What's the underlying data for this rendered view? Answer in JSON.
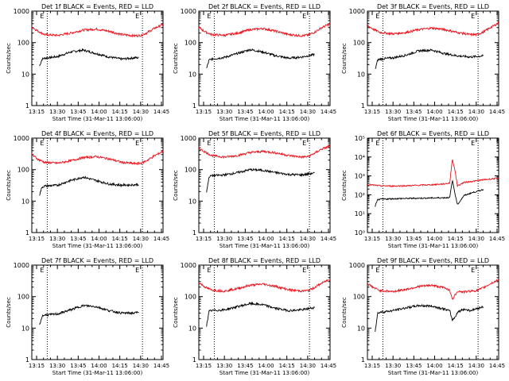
{
  "page": {
    "colors": {
      "background": "#ffffff",
      "axis": "#000000",
      "events": "#000000",
      "lld": "#e8141e",
      "marker_line": "#000000"
    },
    "xlabel": "Start Time (31-Mar-11 13:06:00)",
    "ylabel": "Counts/sec",
    "xtick_labels": [
      "13:15",
      "13:30",
      "13:45",
      "14:00",
      "14:15",
      "14:30",
      "14:45"
    ],
    "corner_label_left": "E",
    "corner_label_right": "E"
  },
  "chart_data": [
    {
      "type": "line",
      "title": "Det 1f BLACK = Events, RED = LLD",
      "x_unit": "minutes after 13:06",
      "x_range_minutes": [
        6,
        40
      ],
      "xlim_minutes": [
        0,
        102
      ],
      "markers_minutes": [
        12,
        86
      ],
      "yscale": "log",
      "ylim": [
        1,
        1000
      ],
      "ytick_labels": [
        "1",
        "10",
        "100",
        "1000"
      ],
      "series": [
        {
          "name": "Events",
          "color": "#000000",
          "x": [
            6,
            8,
            10,
            20,
            30,
            40,
            50,
            60,
            70,
            80,
            83
          ],
          "values": [
            18,
            30,
            32,
            36,
            50,
            58,
            45,
            35,
            30,
            33,
            33
          ]
        },
        {
          "name": "LLD",
          "color": "#e8141e",
          "x": [
            0,
            5,
            10,
            20,
            30,
            40,
            50,
            60,
            70,
            80,
            85,
            90,
            95,
            102
          ],
          "values": [
            310,
            230,
            180,
            170,
            200,
            250,
            270,
            230,
            180,
            165,
            170,
            210,
            280,
            380
          ]
        }
      ]
    },
    {
      "type": "line",
      "title": "Det 2f BLACK = Events, RED = LLD",
      "x_unit": "minutes after 13:06",
      "xlim_minutes": [
        0,
        102
      ],
      "markers_minutes": [
        12,
        86
      ],
      "yscale": "log",
      "ylim": [
        1,
        1000
      ],
      "ytick_labels": [
        "1",
        "10",
        "100",
        "1000"
      ],
      "series": [
        {
          "name": "Events",
          "color": "#000000",
          "x": [
            6,
            8,
            10,
            20,
            30,
            40,
            50,
            60,
            70,
            80,
            90
          ],
          "values": [
            15,
            28,
            30,
            34,
            45,
            60,
            50,
            38,
            32,
            35,
            42
          ]
        },
        {
          "name": "LLD",
          "color": "#e8141e",
          "x": [
            0,
            5,
            10,
            20,
            30,
            40,
            50,
            60,
            70,
            80,
            85,
            90,
            95,
            102
          ],
          "values": [
            300,
            220,
            180,
            170,
            200,
            260,
            280,
            230,
            180,
            165,
            175,
            215,
            290,
            400
          ]
        }
      ]
    },
    {
      "type": "line",
      "title": "Det 3f BLACK = Events, RED = LLD",
      "x_unit": "minutes after 13:06",
      "xlim_minutes": [
        0,
        102
      ],
      "markers_minutes": [
        12,
        86
      ],
      "yscale": "log",
      "ylim": [
        1,
        1000
      ],
      "ytick_labels": [
        "1",
        "10",
        "100",
        "1000"
      ],
      "series": [
        {
          "name": "Events",
          "color": "#000000",
          "x": [
            6,
            8,
            10,
            20,
            30,
            40,
            50,
            60,
            70,
            80,
            90
          ],
          "values": [
            14,
            28,
            30,
            33,
            40,
            55,
            58,
            45,
            38,
            35,
            38
          ]
        },
        {
          "name": "LLD",
          "color": "#e8141e",
          "x": [
            0,
            5,
            10,
            20,
            30,
            40,
            50,
            60,
            70,
            80,
            85,
            90,
            95,
            102
          ],
          "values": [
            350,
            260,
            210,
            190,
            210,
            260,
            290,
            260,
            210,
            180,
            180,
            215,
            290,
            420
          ]
        }
      ]
    },
    {
      "type": "line",
      "title": "Det 4f BLACK = Events, RED = LLD",
      "x_unit": "minutes after 13:06",
      "xlim_minutes": [
        0,
        102
      ],
      "markers_minutes": [
        12,
        86
      ],
      "yscale": "log",
      "ylim": [
        1,
        1000
      ],
      "ytick_labels": [
        "1",
        "10",
        "100",
        "1000"
      ],
      "series": [
        {
          "name": "Events",
          "color": "#000000",
          "x": [
            6,
            8,
            10,
            20,
            30,
            40,
            50,
            60,
            70,
            80,
            83
          ],
          "values": [
            16,
            28,
            30,
            32,
            45,
            58,
            45,
            35,
            32,
            33,
            34
          ]
        },
        {
          "name": "LLD",
          "color": "#e8141e",
          "x": [
            0,
            5,
            10,
            20,
            30,
            40,
            50,
            60,
            70,
            80,
            85,
            90,
            95,
            102
          ],
          "values": [
            300,
            210,
            170,
            160,
            190,
            240,
            260,
            220,
            170,
            155,
            160,
            200,
            270,
            380
          ]
        }
      ]
    },
    {
      "type": "line",
      "title": "Det 5f BLACK = Events, RED = LLD",
      "x_unit": "minutes after 13:06",
      "xlim_minutes": [
        0,
        102
      ],
      "markers_minutes": [
        12,
        86
      ],
      "yscale": "log",
      "ylim": [
        1,
        1000
      ],
      "ytick_labels": [
        "1",
        "10",
        "100",
        "1000"
      ],
      "series": [
        {
          "name": "Events",
          "color": "#000000",
          "x": [
            6,
            8,
            10,
            20,
            30,
            40,
            50,
            60,
            70,
            80,
            90
          ],
          "values": [
            20,
            60,
            64,
            68,
            80,
            100,
            95,
            80,
            70,
            68,
            78
          ]
        },
        {
          "name": "LLD",
          "color": "#e8141e",
          "x": [
            0,
            5,
            10,
            20,
            30,
            40,
            50,
            60,
            70,
            80,
            85,
            90,
            95,
            102
          ],
          "values": [
            480,
            360,
            280,
            250,
            280,
            350,
            380,
            340,
            280,
            250,
            260,
            330,
            440,
            560
          ]
        }
      ]
    },
    {
      "type": "line",
      "title": "Det 6f BLACK = Events, RED = LLD",
      "x_unit": "minutes after 13:06",
      "xlim_minutes": [
        0,
        102
      ],
      "markers_minutes": [
        12,
        86
      ],
      "yscale": "log",
      "ylim": [
        1,
        100000
      ],
      "ytick_labels": [
        "10⁰",
        "10¹",
        "10²",
        "10³",
        "10⁴",
        "10⁵"
      ],
      "series": [
        {
          "name": "Events",
          "color": "#000000",
          "x": [
            6,
            8,
            10,
            20,
            30,
            40,
            50,
            60,
            64,
            66,
            68,
            70,
            75,
            80,
            90
          ],
          "values": [
            25,
            55,
            58,
            62,
            64,
            66,
            68,
            70,
            72,
            600,
            120,
            30,
            90,
            120,
            190
          ]
        },
        {
          "name": "LLD",
          "color": "#e8141e",
          "x": [
            0,
            10,
            20,
            30,
            40,
            50,
            60,
            64,
            66,
            68,
            70,
            72,
            75,
            80,
            90,
            102
          ],
          "values": [
            350,
            300,
            290,
            300,
            320,
            340,
            380,
            420,
            8000,
            2000,
            300,
            350,
            450,
            500,
            620,
            760
          ]
        }
      ]
    },
    {
      "type": "line",
      "title": "Det 7f BLACK = Events, RED = LLD",
      "x_unit": "minutes after 13:06",
      "xlim_minutes": [
        0,
        102
      ],
      "markers_minutes": [
        12,
        86
      ],
      "yscale": "log",
      "ylim": [
        1,
        1000
      ],
      "ytick_labels": [
        "1",
        "10",
        "100",
        "1000"
      ],
      "series": [
        {
          "name": "Events",
          "color": "#000000",
          "x": [
            6,
            8,
            10,
            20,
            30,
            40,
            50,
            60,
            70,
            80,
            83
          ],
          "values": [
            12,
            24,
            26,
            28,
            38,
            52,
            48,
            36,
            30,
            30,
            33
          ]
        }
      ]
    },
    {
      "type": "line",
      "title": "Det 8f BLACK = Events, RED = LLD",
      "x_unit": "minutes after 13:06",
      "xlim_minutes": [
        0,
        102
      ],
      "markers_minutes": [
        12,
        86
      ],
      "yscale": "log",
      "ylim": [
        1,
        1000
      ],
      "ytick_labels": [
        "1",
        "10",
        "100",
        "1000"
      ],
      "series": [
        {
          "name": "Events",
          "color": "#000000",
          "x": [
            6,
            8,
            10,
            20,
            30,
            40,
            50,
            60,
            70,
            80,
            90
          ],
          "values": [
            12,
            34,
            36,
            38,
            48,
            60,
            55,
            42,
            36,
            38,
            45
          ]
        },
        {
          "name": "LLD",
          "color": "#e8141e",
          "x": [
            0,
            5,
            10,
            20,
            30,
            40,
            50,
            60,
            70,
            80,
            85,
            90,
            95,
            102
          ],
          "values": [
            280,
            200,
            160,
            150,
            180,
            230,
            250,
            210,
            165,
            150,
            155,
            195,
            260,
            360
          ]
        }
      ]
    },
    {
      "type": "line",
      "title": "Det 9f BLACK = Events, RED = LLD",
      "x_unit": "minutes after 13:06",
      "xlim_minutes": [
        0,
        102
      ],
      "markers_minutes": [
        12,
        86
      ],
      "yscale": "log",
      "ylim": [
        1,
        1000
      ],
      "ytick_labels": [
        "1",
        "10",
        "100",
        "1000"
      ],
      "series": [
        {
          "name": "Events",
          "color": "#000000",
          "x": [
            6,
            8,
            10,
            20,
            30,
            40,
            50,
            60,
            64,
            66,
            68,
            70,
            75,
            80,
            90
          ],
          "values": [
            8,
            30,
            32,
            36,
            44,
            52,
            50,
            40,
            35,
            18,
            22,
            32,
            40,
            36,
            48
          ]
        },
        {
          "name": "LLD",
          "color": "#e8141e",
          "x": [
            0,
            5,
            10,
            20,
            30,
            40,
            50,
            60,
            64,
            66,
            68,
            70,
            75,
            80,
            85,
            90,
            95,
            102
          ],
          "values": [
            260,
            190,
            155,
            145,
            170,
            210,
            230,
            190,
            160,
            80,
            110,
            150,
            140,
            150,
            155,
            190,
            250,
            340
          ]
        }
      ]
    }
  ]
}
